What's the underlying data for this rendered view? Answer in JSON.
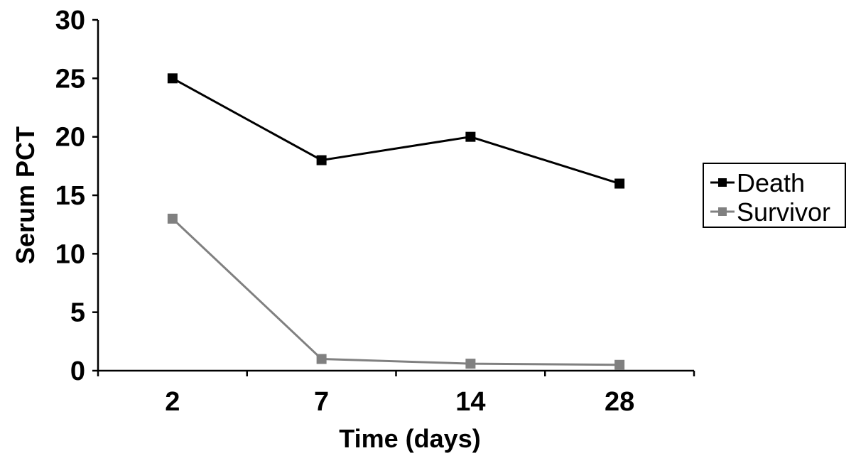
{
  "chart_data": {
    "type": "line",
    "title": "",
    "xlabel": "Time (days)",
    "ylabel": "Serum PCT",
    "categories": [
      "2",
      "7",
      "14",
      "28"
    ],
    "ylim": [
      0,
      30
    ],
    "yticks": [
      "0",
      "5",
      "10",
      "15",
      "20",
      "25",
      "30"
    ],
    "grid": false,
    "legend_position": "right",
    "series": [
      {
        "name": "Death",
        "values": [
          25,
          18,
          20,
          16
        ],
        "color": "#000000",
        "marker": "square"
      },
      {
        "name": "Survivor",
        "values": [
          13,
          1,
          0.6,
          0.5
        ],
        "color": "#808080",
        "marker": "square"
      }
    ]
  }
}
